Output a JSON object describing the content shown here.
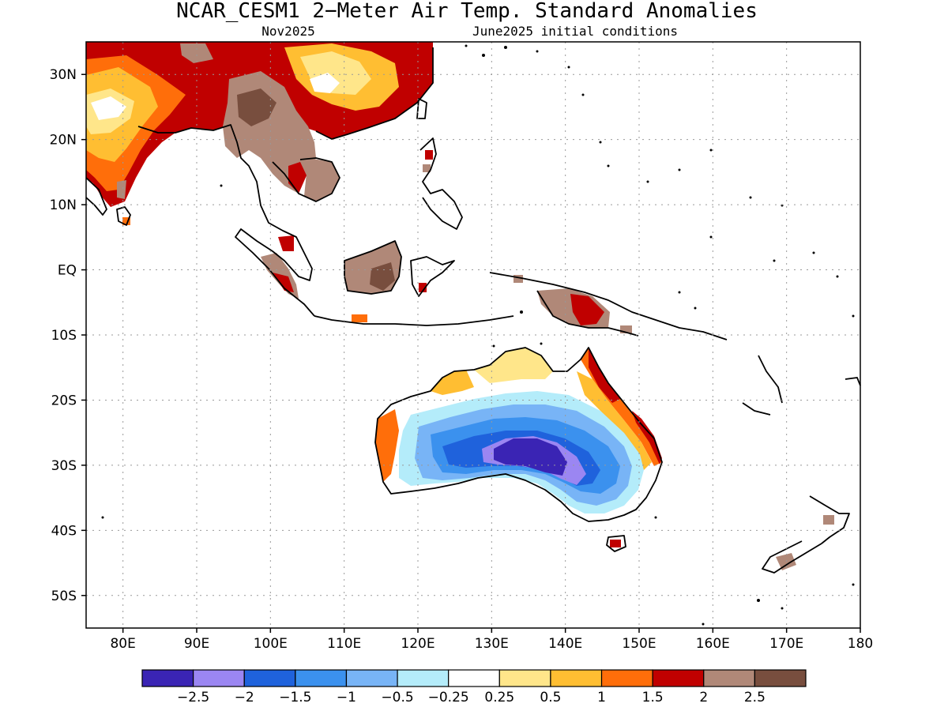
{
  "title": "NCAR_CESM1 2−Meter Air Temp. Standard Anomalies",
  "subtitle_left": "Nov2025",
  "subtitle_right": "June2025 initial conditions",
  "lat_labels": [
    "30N",
    "20N",
    "10N",
    "EQ",
    "10S",
    "20S",
    "30S",
    "40S",
    "50S"
  ],
  "lon_labels": [
    "80E",
    "90E",
    "100E",
    "110E",
    "120E",
    "130E",
    "140E",
    "150E",
    "160E",
    "170E",
    "180"
  ],
  "colorbar": {
    "colors": [
      "#3a24b4",
      "#9b86f2",
      "#1f62dc",
      "#3b91ee",
      "#78b4f6",
      "#b4ecfa",
      "#ffffff",
      "#ffe68a",
      "#ffbe32",
      "#ff6e0a",
      "#c00000",
      "#b08878",
      "#784e3e"
    ],
    "labels": [
      "−2.5",
      "−2",
      "−1.5",
      "−1",
      "−0.5",
      "−0.25",
      "0.25",
      "0.5",
      "1",
      "1.5",
      "2",
      "2.5"
    ]
  },
  "colors": {
    "strong_warm": "#c00000",
    "warm": "#ff6e0a",
    "mild_warm": "#ffbe32",
    "slight_warm": "#ffe68a",
    "brown": "#b08878",
    "dark_brown": "#784e3e",
    "cold_extreme": "#3a24b4",
    "cold": "#1f62dc"
  }
}
